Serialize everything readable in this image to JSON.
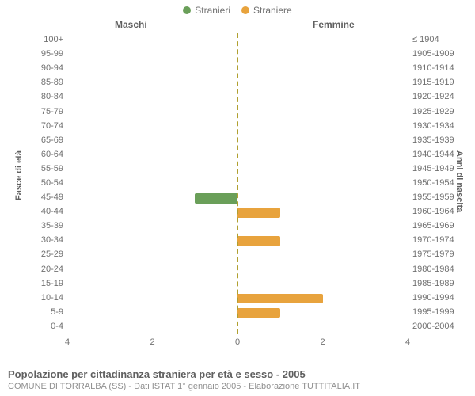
{
  "legend": {
    "male": {
      "label": "Stranieri",
      "color": "#6a9f59"
    },
    "female": {
      "label": "Straniere",
      "color": "#e8a33d"
    }
  },
  "column_headers": {
    "left": "Maschi",
    "right": "Femmine"
  },
  "y_axis_titles": {
    "left": "Fasce di età",
    "right": "Anni di nascita"
  },
  "chart": {
    "type": "population-pyramid",
    "x_max": 4,
    "x_ticks_left": [
      4,
      2,
      0
    ],
    "x_ticks_right": [
      0,
      2,
      4
    ],
    "background_color": "#ffffff",
    "grid_color": "#e0e0e0",
    "center_line_color": "#b0a030",
    "bar_colors": {
      "male": "#6a9f59",
      "female": "#e8a33d"
    },
    "label_fontsize": 11,
    "age_groups": [
      "100+",
      "95-99",
      "90-94",
      "85-89",
      "80-84",
      "75-79",
      "70-74",
      "65-69",
      "60-64",
      "55-59",
      "50-54",
      "45-49",
      "40-44",
      "35-39",
      "30-34",
      "25-29",
      "20-24",
      "15-19",
      "10-14",
      "5-9",
      "0-4"
    ],
    "birth_years": [
      "≤ 1904",
      "1905-1909",
      "1910-1914",
      "1915-1919",
      "1920-1924",
      "1925-1929",
      "1930-1934",
      "1935-1939",
      "1940-1944",
      "1945-1949",
      "1950-1954",
      "1955-1959",
      "1960-1964",
      "1965-1969",
      "1970-1974",
      "1975-1979",
      "1980-1984",
      "1985-1989",
      "1990-1994",
      "1995-1999",
      "2000-2004"
    ],
    "male_values": [
      0,
      0,
      0,
      0,
      0,
      0,
      0,
      0,
      0,
      0,
      0,
      1,
      0,
      0,
      0,
      0,
      0,
      0,
      0,
      0,
      0
    ],
    "female_values": [
      0,
      0,
      0,
      0,
      0,
      0,
      0,
      0,
      0,
      0,
      0,
      0,
      1,
      0,
      1,
      0,
      0,
      0,
      2,
      1,
      0
    ]
  },
  "footer": {
    "title": "Popolazione per cittadinanza straniera per età e sesso - 2005",
    "subtitle": "COMUNE DI TORRALBA (SS) - Dati ISTAT 1° gennaio 2005 - Elaborazione TUTTITALIA.IT"
  }
}
